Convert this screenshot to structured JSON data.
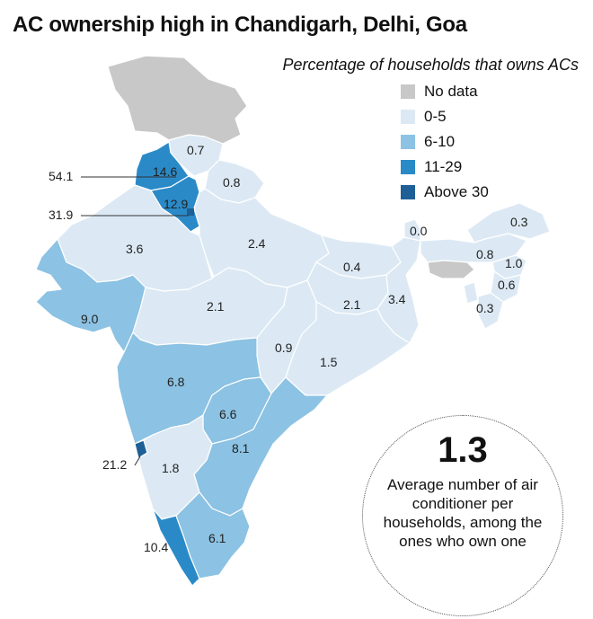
{
  "title": "AC ownership high in Chandigarh, Delhi, Goa",
  "subtitle": "Percentage of households that owns ACs",
  "legend": [
    {
      "label": "No data",
      "color": "#c8c8c8"
    },
    {
      "label": "0-5",
      "color": "#dce9f4"
    },
    {
      "label": "6-10",
      "color": "#8cc2e3"
    },
    {
      "label": "11-29",
      "color": "#2a8ac8"
    },
    {
      "label": "Above 30",
      "color": "#1d5f96"
    }
  ],
  "callout": {
    "value": "1.3",
    "text": "Average number of air conditioner per households, among the ones who own one"
  },
  "region_values": [
    {
      "name": "Himachal Pradesh",
      "value": "0.7"
    },
    {
      "name": "Punjab",
      "value": "14.6"
    },
    {
      "name": "Haryana",
      "value": "12.9"
    },
    {
      "name": "Uttarakhand",
      "value": "0.8"
    },
    {
      "name": "Chandigarh",
      "value": "54.1"
    },
    {
      "name": "Delhi",
      "value": "31.9"
    },
    {
      "name": "Rajasthan",
      "value": "3.6"
    },
    {
      "name": "Uttar Pradesh",
      "value": "2.4"
    },
    {
      "name": "Bihar",
      "value": "0.4"
    },
    {
      "name": "Sikkim",
      "value": "0.0"
    },
    {
      "name": "Arunachal Pradesh",
      "value": "0.3"
    },
    {
      "name": "Assam",
      "value": "0.8"
    },
    {
      "name": "Nagaland",
      "value": "1.0"
    },
    {
      "name": "Manipur",
      "value": "0.6"
    },
    {
      "name": "Mizoram",
      "value": "0.3"
    },
    {
      "name": "West Bengal",
      "value": "3.4"
    },
    {
      "name": "Jharkhand",
      "value": "2.1"
    },
    {
      "name": "Gujarat",
      "value": "9.0"
    },
    {
      "name": "Madhya Pradesh",
      "value": "2.1"
    },
    {
      "name": "Chhattisgarh",
      "value": "0.9"
    },
    {
      "name": "Odisha",
      "value": "1.5"
    },
    {
      "name": "Maharashtra",
      "value": "6.8"
    },
    {
      "name": "Telangana",
      "value": "6.6"
    },
    {
      "name": "Andhra Pradesh",
      "value": "8.1"
    },
    {
      "name": "Goa",
      "value": "21.2"
    },
    {
      "name": "Karnataka",
      "value": "1.8"
    },
    {
      "name": "Kerala",
      "value": "10.4"
    },
    {
      "name": "Tamil Nadu",
      "value": "6.1"
    }
  ]
}
